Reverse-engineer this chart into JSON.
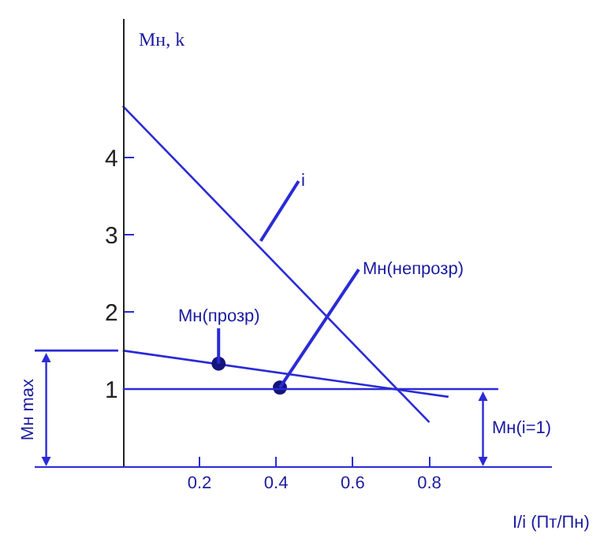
{
  "chart_data": {
    "type": "line",
    "xlabel": "I/i (Пт/Пн)",
    "ylabel": "Мн, k",
    "xlim": [
      -0.23,
      1.12
    ],
    "ylim": [
      0,
      5.8
    ],
    "xticks": [
      0.2,
      0.4,
      0.6,
      0.8
    ],
    "yticks": [
      1,
      2,
      3,
      4
    ],
    "grid": false,
    "legend": false,
    "marker": "none",
    "line_style": "solid",
    "series": [
      {
        "color": "#2a2ad8",
        "x": [
          0,
          0.8
        ],
        "values": [
          4.67,
          0.57
        ]
      },
      {
        "color": "#2a2ad8",
        "x": [
          0,
          0.85
        ],
        "values": [
          1.5,
          0.9
        ]
      },
      {
        "type": "scatter",
        "marker": "circle",
        "color": "#14147a",
        "x": [
          0.25,
          0.41
        ],
        "values": [
          1.33,
          1.02
        ]
      }
    ],
    "ref_lines": [
      {
        "axis": "y",
        "value": 1,
        "color": "#2a2ad8"
      },
      {
        "axis": "y",
        "value": 1.5,
        "color": "#2a2ad8"
      }
    ],
    "annotations": [
      {
        "text": "i",
        "x": 0.36,
        "y": 2.92
      },
      {
        "text": "Мн(прозр)",
        "x": 0.25,
        "y": 1.33
      },
      {
        "text": "Мн(непрозр)",
        "x": 0.41,
        "y": 1.02
      },
      "Мн max",
      "Мн(i=1)"
    ]
  }
}
